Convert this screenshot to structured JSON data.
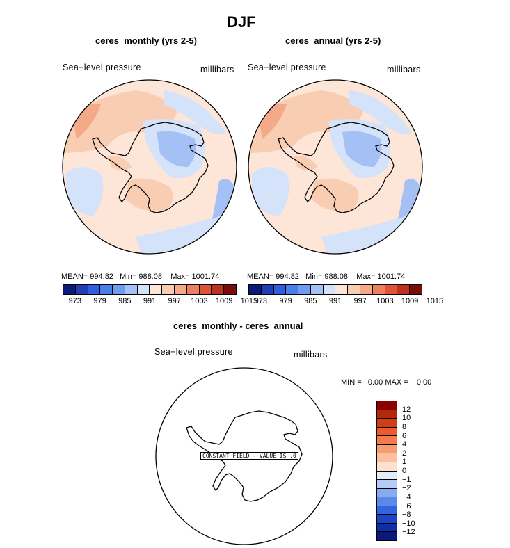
{
  "title": "DJF",
  "panels": [
    {
      "title": "ceres_monthly (yrs 2-5)",
      "variable": "Sea−level pressure",
      "units": "millibars",
      "mean_label": "MEAN=",
      "mean": "994.82",
      "min_label": "Min=",
      "min": "988.08",
      "max_label": "Max=",
      "max": "1001.74"
    },
    {
      "title": "ceres_annual (yrs 2-5)",
      "variable": "Sea−level pressure",
      "units": "millibars",
      "mean_label": "MEAN=",
      "mean": "994.82",
      "min_label": "Min=",
      "min": "988.08",
      "max_label": "Max=",
      "max": "1001.74"
    }
  ],
  "colorbar": {
    "colors": [
      "#0a1a7a",
      "#1f3fb3",
      "#2f5fe0",
      "#4a7ee8",
      "#6f9cef",
      "#a4c0f4",
      "#d4e3fa",
      "#fde6d8",
      "#f9cdb2",
      "#f4a989",
      "#ee7e5c",
      "#e05333",
      "#c0301c",
      "#7a0d0a"
    ],
    "ticks": [
      "973",
      "979",
      "985",
      "991",
      "997",
      "1003",
      "1009",
      "1015"
    ]
  },
  "diff_panel": {
    "title": "ceres_monthly - ceres_annual",
    "variable": "Sea−level pressure",
    "units": "millibars",
    "min_label": "MIN =",
    "min": "0.00",
    "max_label": "MAX =",
    "max": "0.00",
    "constant_label": "CONSTANT FIELD - VALUE IS .0",
    "colorbar": {
      "colors": [
        "#8b0000",
        "#b22a0a",
        "#d23e12",
        "#ee5a2a",
        "#f47c4a",
        "#f79c70",
        "#fac0a0",
        "#fde1cf",
        "#e4ecfb",
        "#b4ccf6",
        "#87abf0",
        "#5c88e8",
        "#3264e0",
        "#1b44c8",
        "#0f2ea8",
        "#0a1a7a"
      ],
      "ticks": [
        "12",
        "10",
        "8",
        "6",
        "4",
        "2",
        "1",
        "0",
        "−1",
        "−2",
        "−4",
        "−6",
        "−8",
        "−10",
        "−12"
      ]
    }
  }
}
